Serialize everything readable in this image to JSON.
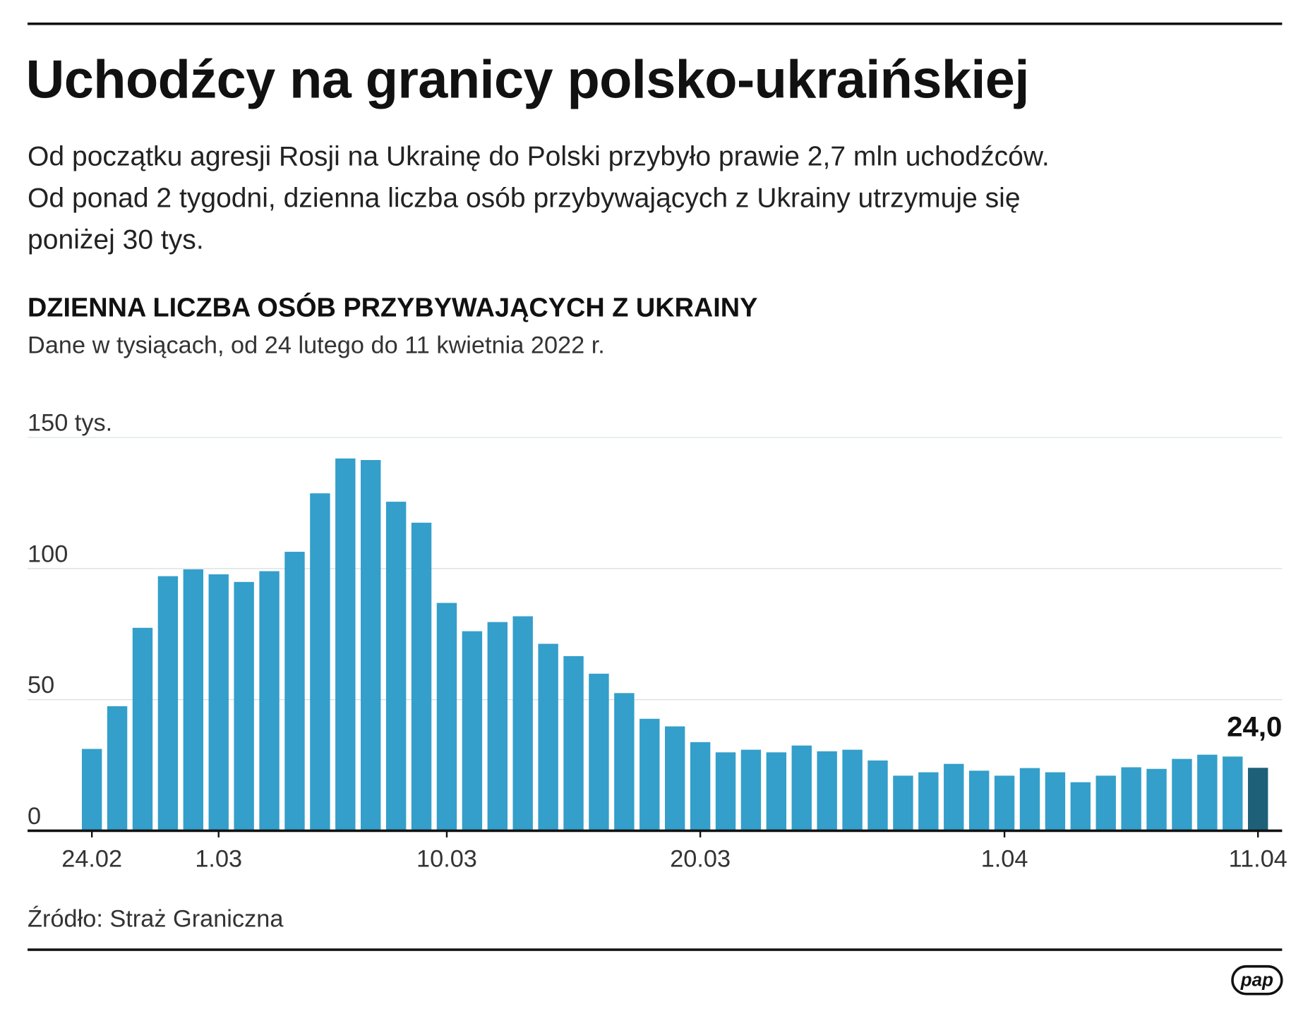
{
  "title": "Uchodźcy na granicy polsko-ukraińskiej",
  "subtitle_lines": [
    "Od początku agresji Rosji na Ukrainę do Polski przybyło prawie 2,7 mln uchodźców.",
    "Od ponad 2 tygodni, dzienna liczba osób przybywających z Ukrainy utrzymuje się",
    "poniżej 30 tys."
  ],
  "source": "Źródło: Straż Graniczna",
  "logo": "pap",
  "chart_data": {
    "type": "bar",
    "title": "DZIENNA LICZBA OSÓB PRZYBYWAJĄCYCH Z UKRAINY",
    "subtitle": "Dane w tysiącach, od 24 lutego do 11 kwietnia 2022 r.",
    "xlabel": "",
    "ylabel": "",
    "ylim": [
      0,
      150
    ],
    "y_ticks": [
      {
        "value": 0,
        "label": "0"
      },
      {
        "value": 50,
        "label": "50"
      },
      {
        "value": 100,
        "label": "100"
      },
      {
        "value": 150,
        "label": "150 tys."
      }
    ],
    "x_ticks": [
      {
        "index": 0,
        "label": "24.02"
      },
      {
        "index": 5,
        "label": "1.03"
      },
      {
        "index": 14,
        "label": "10.03"
      },
      {
        "index": 24,
        "label": "20.03"
      },
      {
        "index": 36,
        "label": "1.04"
      },
      {
        "index": 46,
        "label": "11.04"
      }
    ],
    "values": [
      31.2,
      47.5,
      77.4,
      97.1,
      99.7,
      97.8,
      94.9,
      99.0,
      106.4,
      128.7,
      142.0,
      141.4,
      125.5,
      117.5,
      86.9,
      76.1,
      79.6,
      81.8,
      71.3,
      66.6,
      59.9,
      52.5,
      42.7,
      39.8,
      33.8,
      29.9,
      30.9,
      29.9,
      32.5,
      30.3,
      30.9,
      26.8,
      21.0,
      22.3,
      25.5,
      22.9,
      21.0,
      23.9,
      22.3,
      18.5,
      21.0,
      24.2,
      23.6,
      27.4,
      29.0,
      28.3,
      24.0
    ],
    "annotation": {
      "index": 46,
      "label": "24,0"
    },
    "colors": {
      "bar": "#339fca",
      "highlight": "#1f6079",
      "grid": "#d6dde2",
      "axis": "#111111"
    },
    "grid": true
  }
}
